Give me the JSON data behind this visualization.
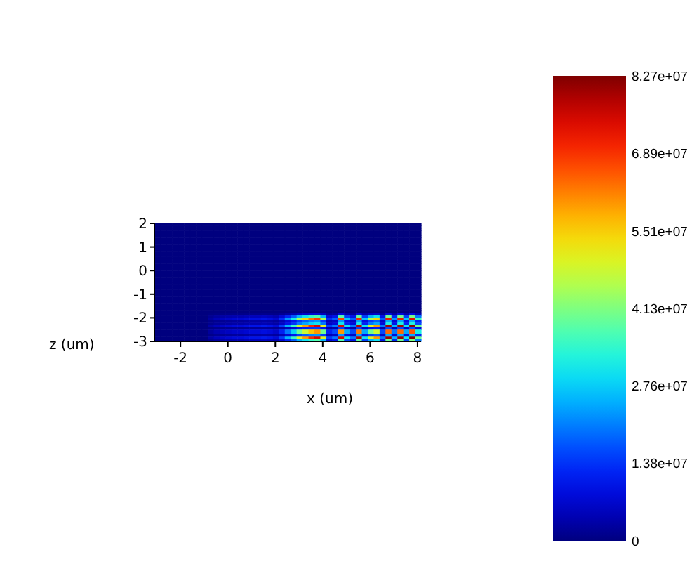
{
  "chart_data": {
    "type": "heatmap",
    "xlabel": "x (um)",
    "ylabel": "z (um)",
    "xlim": [
      -3.1,
      8.15
    ],
    "ylim": [
      -3,
      2
    ],
    "xticks": [
      -2,
      0,
      2,
      4,
      6,
      8
    ],
    "yticks": [
      -3,
      -2,
      -1,
      0,
      1,
      2
    ],
    "clim": [
      0,
      82700000.0
    ],
    "cticks": [
      0,
      {
        "value": 13800000.0,
        "label": "1.38e+07"
      },
      {
        "value": 27600000.0,
        "label": "2.76e+07"
      },
      {
        "value": 41300000.0,
        "label": "4.13e+07"
      },
      {
        "value": 55100000.0,
        "label": "5.51e+07"
      },
      {
        "value": 68900000.0,
        "label": "6.89e+07"
      },
      {
        "value": 82700000.0,
        "label": "8.27e+07"
      }
    ],
    "cells": [
      [
        0,
        0,
        0,
        0,
        0,
        0,
        0,
        0,
        0,
        0,
        0,
        0,
        0,
        0,
        0,
        0,
        0,
        0,
        0,
        0,
        0,
        0,
        0,
        0,
        0,
        0,
        0,
        0,
        0,
        0,
        0,
        0,
        0,
        0,
        0,
        0,
        0,
        0,
        0,
        0,
        0,
        0,
        0,
        0,
        0
      ],
      [
        0,
        0,
        0,
        0,
        0,
        0,
        0,
        0,
        0,
        0,
        0,
        0,
        0,
        0,
        0,
        0,
        0,
        0,
        0,
        0,
        0,
        0,
        0,
        0,
        0,
        0,
        0,
        0,
        0,
        0,
        0,
        0,
        0,
        0,
        0,
        0,
        0,
        0,
        0,
        0,
        0,
        0,
        0,
        0,
        0
      ],
      [
        0,
        0,
        0,
        0,
        0,
        0,
        0,
        0,
        0,
        0,
        0,
        0,
        0,
        0,
        0,
        0,
        0,
        0,
        0,
        0,
        0,
        0,
        0,
        0,
        0,
        0,
        0,
        0,
        0,
        0,
        0,
        0,
        0,
        0,
        0,
        0,
        0,
        0,
        0,
        0,
        0,
        0,
        0,
        0,
        0
      ],
      [
        0,
        0,
        0,
        0,
        0,
        0,
        0,
        0,
        0,
        0,
        0,
        0,
        0,
        0,
        0,
        0,
        0,
        0,
        0,
        0,
        0,
        0,
        0,
        0,
        0,
        0,
        0,
        0,
        0,
        0,
        0,
        0,
        0,
        0,
        0,
        0,
        0,
        0,
        0,
        0,
        0,
        0,
        0,
        0,
        0
      ],
      [
        0,
        0,
        0,
        0,
        0,
        0,
        0,
        0,
        0,
        0,
        0,
        0,
        0,
        0,
        0,
        0,
        0,
        0,
        0,
        0,
        0,
        0,
        0,
        0,
        0,
        0,
        0,
        0,
        0,
        0,
        0,
        0,
        0,
        0,
        0,
        0,
        0,
        0,
        0,
        0,
        0,
        0,
        0,
        0,
        0
      ],
      [
        0,
        0,
        0,
        0,
        0,
        0,
        0,
        0,
        0,
        0,
        0,
        0,
        0,
        0,
        0,
        0,
        0,
        0,
        0,
        0,
        0,
        0,
        0,
        0,
        0,
        0,
        0,
        0,
        0,
        0,
        0,
        0,
        0,
        0,
        0,
        0,
        0,
        0,
        0,
        0,
        0,
        0,
        0,
        0,
        0
      ],
      [
        0,
        0,
        0,
        0,
        0,
        0,
        0,
        0,
        0,
        0,
        0,
        0,
        0,
        0,
        0,
        0,
        0,
        0,
        0,
        0,
        0,
        0,
        0,
        0,
        0,
        0,
        0,
        0,
        0,
        0,
        0,
        0,
        0,
        0,
        0,
        0,
        0,
        0,
        0,
        0,
        0,
        0,
        0,
        0,
        0
      ],
      [
        0,
        0,
        0,
        0,
        0,
        0,
        0,
        0,
        0,
        0,
        0,
        0,
        0,
        0,
        0,
        0,
        0,
        0,
        0,
        0,
        0,
        0,
        0,
        0,
        0,
        0,
        0,
        0,
        0,
        0,
        0,
        0,
        0,
        0,
        0,
        0,
        0,
        0,
        0,
        0,
        0,
        0,
        0,
        0,
        0
      ],
      [
        0,
        0,
        0,
        0,
        0,
        0,
        0,
        0,
        0,
        0,
        0,
        0,
        0,
        0,
        0,
        0,
        0,
        0,
        0,
        0,
        0,
        0,
        0,
        0,
        0,
        0,
        0,
        0,
        0,
        0,
        0,
        0,
        0,
        0,
        0,
        0,
        0,
        0,
        0,
        0,
        0,
        0,
        0,
        0,
        0
      ],
      [
        0,
        0,
        0,
        0,
        0,
        0,
        0,
        0,
        0,
        0,
        0,
        0,
        0,
        0,
        0,
        0,
        0,
        0,
        0,
        0,
        0,
        0,
        0,
        0,
        0,
        0,
        0,
        0,
        0,
        0,
        0,
        0,
        0,
        0,
        0,
        0,
        0,
        0,
        0,
        0,
        0,
        0,
        0,
        0,
        0
      ],
      [
        0,
        0,
        0,
        0,
        0,
        0,
        0,
        0,
        0,
        0,
        0,
        0,
        0,
        0,
        0,
        0,
        0,
        0,
        0,
        0,
        0,
        0,
        0,
        0,
        0,
        0,
        0,
        0,
        0,
        0,
        0,
        0,
        0,
        0,
        0,
        0,
        0,
        0,
        0,
        0,
        0,
        0,
        0,
        0,
        0
      ],
      [
        0,
        0,
        0,
        0,
        0,
        0,
        0,
        0,
        0,
        0,
        0,
        0,
        0,
        0,
        0,
        0,
        0,
        0,
        0,
        0,
        0,
        0,
        0,
        0,
        0,
        0,
        0,
        0,
        0,
        0,
        0,
        0,
        0,
        0,
        0,
        0,
        0,
        0,
        0,
        0,
        0,
        0,
        0,
        0,
        0
      ],
      [
        0,
        0,
        0,
        0,
        0,
        0,
        0,
        0,
        0,
        0,
        0,
        0,
        0,
        0,
        0,
        0,
        0,
        0,
        0,
        0,
        0,
        0,
        0,
        0,
        0,
        0,
        0,
        0,
        0,
        0,
        0,
        0,
        0,
        0,
        0,
        0,
        0,
        0,
        0,
        0,
        0,
        0,
        0,
        0,
        0
      ],
      [
        0,
        0,
        0,
        0,
        0,
        0,
        0,
        0,
        0,
        0,
        0,
        0,
        0,
        0,
        0,
        0,
        0,
        0,
        0,
        0,
        0,
        0,
        0,
        0,
        0,
        0,
        0,
        0,
        0,
        0,
        0,
        0,
        0,
        0,
        0,
        0,
        0,
        0,
        0,
        0,
        0,
        0,
        0,
        0,
        0
      ],
      [
        0,
        0,
        0,
        0,
        0,
        0,
        0,
        0,
        0,
        0,
        0,
        0,
        0,
        0,
        0,
        0,
        0,
        0,
        0,
        0,
        0,
        0,
        0,
        0,
        0,
        0,
        0,
        0,
        0,
        0,
        0,
        0,
        0,
        0,
        0,
        0,
        0,
        0,
        0,
        0,
        0,
        0,
        0,
        0,
        0
      ],
      [
        0,
        0,
        0,
        0,
        0,
        0,
        0,
        0,
        0,
        0,
        0,
        0,
        0,
        0,
        0,
        0,
        0,
        0,
        0,
        0,
        0,
        0,
        0,
        0,
        0,
        0,
        0,
        0,
        0,
        0,
        0,
        0,
        0,
        0,
        0,
        0,
        0,
        0,
        0,
        0,
        0,
        0,
        0,
        0,
        0
      ],
      [
        0,
        0,
        0,
        0,
        0,
        0,
        0,
        0,
        0,
        0,
        0,
        0,
        0,
        0,
        0,
        0,
        0,
        0,
        0,
        0,
        0,
        0,
        0,
        0,
        0,
        0,
        0,
        0,
        0,
        0,
        0,
        0,
        0,
        0,
        0,
        0,
        0,
        0,
        0,
        0,
        0,
        0,
        0,
        0,
        0
      ],
      [
        0,
        0,
        0,
        0,
        0,
        0,
        0,
        0,
        0,
        0,
        0,
        0,
        0,
        0,
        0,
        0,
        0,
        0,
        0,
        0,
        0,
        0,
        0,
        0,
        0,
        0,
        0,
        0,
        0,
        0,
        0,
        0,
        0,
        0,
        0,
        0,
        0,
        0,
        0,
        0,
        0,
        0,
        0,
        0,
        0
      ],
      [
        0,
        0,
        0,
        0,
        0,
        0,
        0,
        0,
        0,
        0,
        0,
        0,
        0,
        0,
        0,
        0,
        0,
        0,
        0,
        0,
        0,
        0,
        0,
        0,
        0,
        0,
        0,
        0,
        0,
        0,
        0,
        0,
        0,
        0,
        0,
        0,
        0,
        0,
        0,
        0,
        0,
        0,
        0,
        0,
        0
      ],
      [
        0,
        0,
        0,
        0,
        0,
        0,
        0,
        0,
        0,
        0,
        0,
        0,
        0,
        0,
        0,
        0,
        0,
        0,
        0,
        0,
        0,
        0,
        0,
        0,
        0,
        0,
        0,
        0,
        0,
        0,
        0,
        0,
        0,
        0,
        0,
        0,
        0,
        0,
        0,
        0,
        0,
        0,
        0,
        0,
        0
      ],
      [
        0,
        0,
        0,
        0,
        0,
        0,
        0,
        0,
        0,
        0,
        0,
        0,
        0,
        0,
        0,
        0,
        0,
        0,
        0,
        0,
        0,
        0,
        0,
        0,
        0,
        0,
        0,
        0,
        0,
        0,
        0,
        0,
        0,
        0,
        0,
        0,
        0,
        0,
        0,
        0,
        0,
        0,
        0,
        0,
        0
      ],
      [
        0,
        0,
        0,
        0,
        0,
        0,
        0,
        0,
        0,
        0,
        0,
        0,
        0,
        0,
        0,
        0,
        0,
        0,
        0,
        0,
        0,
        0,
        0,
        0,
        0,
        0,
        0,
        0,
        0,
        0,
        0,
        0,
        0,
        0,
        0,
        0,
        0,
        0,
        0,
        0,
        0,
        0,
        0,
        0,
        0
      ],
      [
        0,
        0,
        0,
        0,
        0,
        0,
        0,
        0,
        0,
        0,
        0,
        0,
        0,
        0,
        0,
        0,
        0,
        0,
        0,
        0,
        0,
        0,
        0,
        0,
        0,
        0,
        0,
        0,
        0,
        0,
        0,
        0,
        0,
        0,
        0,
        0,
        0,
        0,
        0,
        0,
        0,
        0,
        0,
        0,
        0
      ],
      [
        0,
        0,
        0,
        0,
        0,
        0,
        0,
        0,
        0,
        0,
        0,
        0,
        0,
        0,
        0,
        0,
        0,
        0,
        0,
        0,
        0,
        0,
        0,
        0,
        0,
        0,
        0,
        0,
        0,
        0,
        0,
        0,
        0,
        0,
        0,
        0,
        0,
        0,
        0,
        0,
        0,
        0,
        0,
        0,
        0
      ],
      [
        0,
        0,
        0,
        0,
        0,
        0,
        0,
        0,
        0,
        0,
        0,
        0,
        0,
        0,
        0,
        0,
        0,
        0,
        0,
        0,
        0,
        0,
        0,
        0,
        0,
        0,
        0,
        0,
        0,
        0,
        0,
        0,
        0,
        0,
        0,
        0,
        0,
        0,
        0,
        0,
        0,
        0,
        0,
        0,
        0
      ],
      [
        0,
        0,
        0,
        0,
        0,
        0,
        0,
        0,
        0,
        0,
        0,
        0,
        0,
        0,
        0,
        0,
        0,
        0,
        0,
        0,
        0,
        0,
        0,
        0,
        0,
        0,
        0,
        0,
        0,
        0,
        0,
        0,
        0,
        0,
        0,
        0,
        0,
        0,
        0,
        0,
        0,
        0,
        0,
        0,
        0
      ],
      [
        0,
        0,
        0,
        0,
        0,
        0,
        0,
        0,
        0,
        0,
        0,
        0,
        0,
        0,
        0,
        0,
        0,
        0,
        0,
        0,
        0,
        0,
        0,
        0,
        0,
        0,
        0,
        0,
        0,
        0,
        0,
        0,
        0,
        0,
        0,
        0,
        0,
        0,
        0,
        0,
        0,
        0,
        0,
        0,
        0
      ],
      [
        0,
        0,
        0,
        0,
        0,
        0,
        0,
        0,
        0,
        0,
        0,
        0,
        0,
        0,
        0,
        0,
        0,
        0,
        0,
        0,
        0,
        0,
        0,
        0,
        0,
        0,
        0,
        0,
        0,
        0,
        0,
        0,
        0,
        0,
        0,
        0,
        0,
        0,
        0,
        0,
        0,
        0,
        0,
        0,
        0
      ],
      [
        0,
        0,
        0,
        0,
        0,
        0,
        0,
        0,
        0,
        0,
        0,
        0,
        0,
        0,
        0,
        0,
        0,
        0,
        0,
        0,
        0,
        0,
        0,
        0,
        0,
        0,
        0,
        0,
        0,
        0,
        0,
        0,
        0,
        0,
        0,
        0,
        0,
        0,
        0,
        0,
        0,
        0,
        0,
        0,
        0
      ],
      [
        0,
        0,
        0,
        0,
        0,
        0,
        0,
        0,
        0,
        0,
        0,
        0,
        0,
        0,
        0,
        0,
        0,
        0,
        0,
        0,
        0,
        0,
        0,
        0,
        0,
        0,
        0,
        0,
        0,
        0,
        0,
        0,
        0,
        0,
        0,
        0,
        0,
        0,
        0,
        0,
        0,
        0,
        0,
        0,
        0
      ],
      [
        0,
        0,
        0,
        0,
        0,
        0,
        0,
        0,
        0,
        0,
        0,
        0,
        0,
        0,
        0,
        0,
        0,
        0,
        0,
        0,
        0,
        0,
        0,
        0,
        0,
        0,
        0,
        0,
        0,
        0,
        0,
        0,
        0,
        0,
        0,
        0,
        0,
        0,
        0,
        0,
        0,
        0,
        0,
        0,
        0
      ],
      [
        0,
        0,
        0,
        0,
        0,
        0,
        0,
        0,
        0,
        0,
        0,
        0,
        0,
        0,
        0,
        0,
        0,
        0,
        0,
        0,
        0,
        0,
        0,
        0,
        0,
        0,
        0,
        0,
        0,
        0,
        0,
        0,
        0,
        0,
        0,
        0,
        0,
        0,
        0,
        0,
        0,
        0,
        0,
        0,
        0
      ],
      [
        0,
        0,
        0,
        0,
        0,
        0,
        0,
        0,
        0,
        0,
        0,
        0,
        0,
        0,
        0,
        0,
        0,
        0,
        0,
        0,
        0,
        0,
        0,
        0,
        0,
        0,
        0,
        0,
        0,
        0,
        0,
        0,
        0,
        0,
        0,
        0,
        0,
        0,
        0,
        0,
        0,
        0,
        0,
        0,
        0
      ],
      [
        0,
        0,
        0,
        0,
        0,
        0,
        0,
        0,
        0,
        0,
        0,
        0,
        0,
        0,
        0,
        0,
        0,
        0,
        0,
        0,
        0,
        0,
        0,
        0,
        0,
        0,
        0,
        0,
        0,
        0,
        0,
        0,
        0,
        0,
        0,
        0,
        0,
        0,
        0,
        0,
        0,
        0,
        0,
        0,
        0
      ],
      [
        0,
        0,
        0,
        0,
        0,
        0,
        0,
        0,
        0,
        0,
        0,
        0,
        0,
        0,
        0,
        0,
        0,
        0,
        0,
        0,
        0,
        0,
        0,
        0,
        0,
        0,
        0,
        0,
        0,
        0,
        0,
        0,
        0,
        0,
        0,
        0,
        0,
        0,
        0,
        0,
        0,
        0,
        0,
        0,
        0
      ],
      [
        0,
        0,
        0,
        0,
        0,
        0,
        0,
        0,
        0,
        0,
        0,
        0,
        0,
        0,
        0,
        0,
        0,
        0,
        0,
        0,
        0,
        0,
        0,
        0,
        0,
        0,
        0,
        0,
        0,
        0,
        0,
        0,
        0,
        0,
        0,
        0,
        0,
        0,
        0,
        0,
        0,
        0,
        0,
        0,
        0
      ],
      [
        0,
        0,
        0,
        0,
        0,
        0,
        0,
        0,
        0,
        0,
        0,
        0,
        0,
        0,
        0,
        0,
        0,
        0,
        0,
        0,
        0,
        0,
        0,
        0,
        0,
        0,
        0,
        0,
        0,
        0,
        0,
        0,
        0,
        0,
        0,
        0,
        0,
        0,
        0,
        0,
        0,
        0,
        0,
        0,
        0
      ],
      [
        0,
        0,
        0,
        0,
        0,
        0,
        0,
        0,
        0,
        0,
        0,
        0,
        0,
        0,
        0,
        0,
        0,
        0,
        0,
        0,
        0,
        0,
        0,
        0,
        0,
        0,
        0,
        0,
        0,
        0,
        0,
        0,
        0,
        0,
        0,
        0,
        0,
        0,
        0,
        0,
        0,
        0,
        0,
        0,
        0
      ],
      [
        0,
        0,
        0,
        0,
        0,
        0,
        0,
        0,
        0,
        300000.0,
        500000.0,
        600000.0,
        700000.0,
        800000.0,
        800000.0,
        900000.0,
        1000000.0,
        1000000.0,
        1100000.0,
        1000000.0,
        800000.0,
        1500000.0,
        2500000.0,
        3500000.0,
        5000000.0,
        6000000.0,
        7000000.0,
        7500000.0,
        5000000.0,
        1500000.0,
        2000000.0,
        7500000.0,
        3000000.0,
        2000000.0,
        7800000.0,
        3000000.0,
        5000000.0,
        6000000.0,
        2000000.0,
        8000000.0,
        2500000.0,
        8000000.0,
        3000000.0,
        8200000.0,
        4000000.0
      ],
      [
        0,
        0,
        0,
        0,
        0,
        0,
        0,
        0,
        0,
        1500000.0,
        2500000.0,
        3000000.0,
        3500000.0,
        4000000.0,
        4000000.0,
        4500000.0,
        5000000.0,
        5000000.0,
        5500000.0,
        5000000.0,
        4000000.0,
        7500000.0,
        12500000.0,
        17500000.0,
        25000000.0,
        30000000.0,
        35000000.0,
        37500000.0,
        25000000.0,
        7500000.0,
        10000000.0,
        37500000.0,
        15000000.0,
        10000000.0,
        39000000.0,
        15000000.0,
        25000000.0,
        30000000.0,
        10000000.0,
        40000000.0,
        12500000.0,
        40000000.0,
        15000000.0,
        41000000.0,
        20000000.0
      ],
      [
        0,
        0,
        0,
        0,
        0,
        0,
        0,
        0,
        0,
        2700000.0,
        4500000.0,
        5400000.0,
        6300000.0,
        7200000.0,
        7200000.0,
        8100000.0,
        9000000.0,
        9000000.0,
        9900000.0,
        9000000.0,
        7200000.0,
        13500000.0,
        22500000.0,
        31500000.0,
        45000000.0,
        54000000.0,
        63000000.0,
        67500000.0,
        45000000.0,
        13500000.0,
        18000000.0,
        67500000.0,
        27000000.0,
        18000000.0,
        70200000.0,
        27000000.0,
        45000000.0,
        54000000.0,
        18000000.0,
        72000000.0,
        22500000.0,
        72000000.0,
        27000000.0,
        73800000.0,
        36000000.0
      ],
      [
        0,
        0,
        0,
        0,
        0,
        0,
        0,
        0,
        0,
        900000.0,
        1500000.0,
        1800000.0,
        2100000.0,
        2400000.0,
        2400000.0,
        2700000.0,
        3000000.0,
        3000000.0,
        3300000.0,
        3000000.0,
        2400000.0,
        4500000.0,
        7500000.0,
        10500000.0,
        15000000.0,
        18000000.0,
        21000000.0,
        22500000.0,
        15000000.0,
        4500000.0,
        6000000.0,
        22500000.0,
        9000000.0,
        6000000.0,
        23400000.0,
        9000000.0,
        15000000.0,
        18000000.0,
        6000000.0,
        24000000.0,
        7500000.0,
        24000000.0,
        9000000.0,
        24600000.0,
        12000000.0
      ],
      [
        0,
        0,
        0,
        0,
        0,
        0,
        0,
        0,
        0,
        1200000.0,
        2000000.0,
        2400000.0,
        2800000.0,
        3200000.0,
        3200000.0,
        3600000.0,
        4000000.0,
        4000000.0,
        4400000.0,
        4000000.0,
        3200000.0,
        6000000.0,
        10000000.0,
        14000000.0,
        20000000.0,
        24000000.0,
        28000000.0,
        30000000.0,
        20000000.0,
        6000000.0,
        8000000.0,
        30000000.0,
        12000000.0,
        8000000.0,
        31200000.0,
        12000000.0,
        20000000.0,
        24000000.0,
        8000000.0,
        32000000.0,
        10000000.0,
        32000000.0,
        12000000.0,
        32800000.0,
        16000000.0
      ],
      [
        0,
        0,
        0,
        0,
        0,
        0,
        0,
        0,
        0,
        3000000.0,
        5000000.0,
        6000000.0,
        7000000.0,
        8000000.0,
        8000000.0,
        9000000.0,
        10000000.0,
        10000000.0,
        11000000.0,
        10000000.0,
        8000000.0,
        15000000.0,
        25000000.0,
        35000000.0,
        50000000.0,
        60000000.0,
        70000000.0,
        75000000.0,
        50000000.0,
        15000000.0,
        20000000.0,
        75000000.0,
        30000000.0,
        20000000.0,
        78000000.0,
        30000000.0,
        50000000.0,
        60000000.0,
        20000000.0,
        80000000.0,
        25000000.0,
        80000000.0,
        30000000.0,
        82000000.0,
        40000000.0
      ],
      [
        0,
        0,
        0,
        0,
        0,
        0,
        0,
        0,
        0,
        600000.0,
        1000000.0,
        1200000.0,
        1400000.0,
        1600000.0,
        1600000.0,
        1800000.0,
        2000000.0,
        2000000.0,
        2200000.0,
        2000000.0,
        1600000.0,
        3000000.0,
        5000000.0,
        7000000.0,
        10000000.0,
        12000000.0,
        14000000.0,
        15000000.0,
        10000000.0,
        3000000.0,
        4000000.0,
        15000000.0,
        6000000.0,
        4000000.0,
        15600000.0,
        6000000.0,
        10000000.0,
        12000000.0,
        4000000.0,
        16000000.0,
        5000000.0,
        16000000.0,
        6000000.0,
        16400000.0,
        8000000.0
      ],
      [
        0,
        0,
        0,
        0,
        0,
        0,
        0,
        0,
        0,
        2400000.0,
        4000000.0,
        4800000.0,
        5600000.0,
        6400000.0,
        6400000.0,
        7200000.0,
        8000000.0,
        8000000.0,
        8800000.0,
        8000000.0,
        6400000.0,
        12000000.0,
        20000000.0,
        28000000.0,
        40000000.0,
        48000000.0,
        56000000.0,
        60000000.0,
        40000000.0,
        12000000.0,
        16000000.0,
        60000000.0,
        24000000.0,
        16000000.0,
        62400000.0,
        24000000.0,
        40000000.0,
        48000000.0,
        16000000.0,
        64000000.0,
        20000000.0,
        64000000.0,
        24000000.0,
        65600000.0,
        32000000.0
      ],
      [
        0,
        0,
        0,
        0,
        0,
        0,
        0,
        0,
        0,
        2400000.0,
        4000000.0,
        4800000.0,
        5600000.0,
        6400000.0,
        6400000.0,
        7200000.0,
        8000000.0,
        8000000.0,
        8800000.0,
        8000000.0,
        6400000.0,
        12000000.0,
        20000000.0,
        28000000.0,
        40000000.0,
        48000000.0,
        56000000.0,
        60000000.0,
        40000000.0,
        12000000.0,
        16000000.0,
        60000000.0,
        24000000.0,
        16000000.0,
        62400000.0,
        24000000.0,
        40000000.0,
        48000000.0,
        16000000.0,
        64000000.0,
        20000000.0,
        64000000.0,
        24000000.0,
        65600000.0,
        32000000.0
      ],
      [
        0,
        0,
        0,
        0,
        0,
        0,
        0,
        0,
        0,
        900000.0,
        1500000.0,
        1800000.0,
        2100000.0,
        2400000.0,
        2400000.0,
        2700000.0,
        3000000.0,
        3000000.0,
        3300000.0,
        3000000.0,
        2400000.0,
        4500000.0,
        7500000.0,
        10500000.0,
        15000000.0,
        18000000.0,
        21000000.0,
        22500000.0,
        15000000.0,
        4500000.0,
        6000000.0,
        22500000.0,
        9000000.0,
        6000000.0,
        23400000.0,
        9000000.0,
        15000000.0,
        18000000.0,
        6000000.0,
        24000000.0,
        7500000.0,
        24000000.0,
        9000000.0,
        24600000.0,
        12000000.0
      ],
      [
        0,
        0,
        0,
        0,
        0,
        0,
        0,
        0,
        0,
        3000000.0,
        5000000.0,
        6000000.0,
        7000000.0,
        8000000.0,
        8000000.0,
        9000000.0,
        10000000.0,
        10000000.0,
        11000000.0,
        10000000.0,
        8000000.0,
        15000000.0,
        25000000.0,
        35000000.0,
        50000000.0,
        60000000.0,
        70000000.0,
        75000000.0,
        50000000.0,
        15000000.0,
        20000000.0,
        75000000.0,
        30000000.0,
        20000000.0,
        78000000.0,
        30000000.0,
        50000000.0,
        60000000.0,
        20000000.0,
        80000000.0,
        25000000.0,
        80000000.0,
        30000000.0,
        82000000.0,
        40000000.0
      ],
      [
        0,
        0,
        0,
        0,
        0,
        0,
        0,
        0,
        0,
        1500000.0,
        2500000.0,
        3000000.0,
        3500000.0,
        4000000.0,
        4000000.0,
        4500000.0,
        5000000.0,
        5000000.0,
        5500000.0,
        5000000.0,
        4000000.0,
        7500000.0,
        12500000.0,
        17500000.0,
        25000000.0,
        30000000.0,
        35000000.0,
        37500000.0,
        25000000.0,
        7500000.0,
        10000000.0,
        37500000.0,
        15000000.0,
        10000000.0,
        39000000.0,
        15000000.0,
        25000000.0,
        30000000.0,
        10000000.0,
        40000000.0,
        12500000.0,
        40000000.0,
        15000000.0,
        41000000.0,
        20000000.0
      ]
    ]
  }
}
